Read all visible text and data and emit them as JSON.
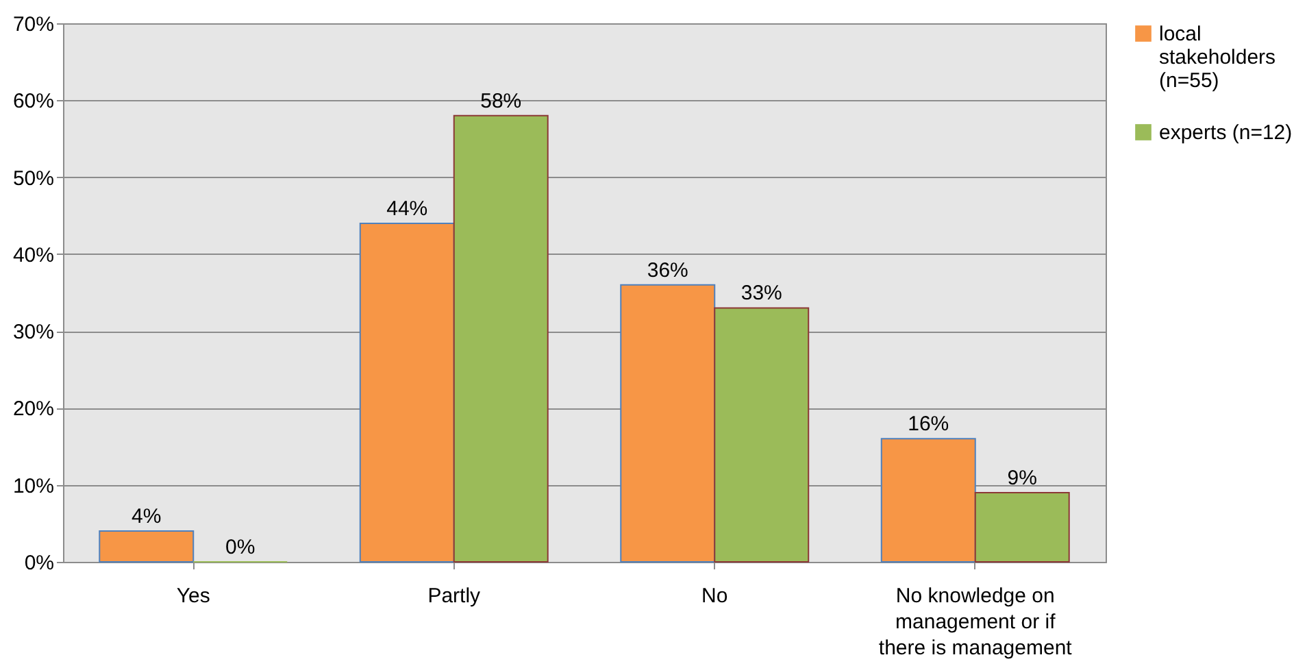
{
  "chart_data": {
    "type": "bar",
    "categories": [
      "Yes",
      "Partly",
      "No",
      "No knowledge on management or if there is management"
    ],
    "series": [
      {
        "name": "local stakeholders (n=55)",
        "color": "#f79646",
        "values": [
          4,
          44,
          36,
          16
        ],
        "value_labels": [
          "4%",
          "44%",
          "36%",
          "16%"
        ]
      },
      {
        "name": "experts (n=12)",
        "color": "#9bbb59",
        "values": [
          0,
          58,
          33,
          9
        ],
        "value_labels": [
          "0%",
          "58%",
          "33%",
          "9%"
        ]
      }
    ],
    "ylim": [
      0,
      70
    ],
    "yticks": [
      {
        "value": 0,
        "label": "0%"
      },
      {
        "value": 10,
        "label": "10%"
      },
      {
        "value": 20,
        "label": "20%"
      },
      {
        "value": 30,
        "label": "30%"
      },
      {
        "value": 40,
        "label": "40%"
      },
      {
        "value": 50,
        "label": "50%"
      },
      {
        "value": 60,
        "label": "60%"
      },
      {
        "value": 70,
        "label": "70%"
      }
    ],
    "grid": "y",
    "legend": "right"
  }
}
